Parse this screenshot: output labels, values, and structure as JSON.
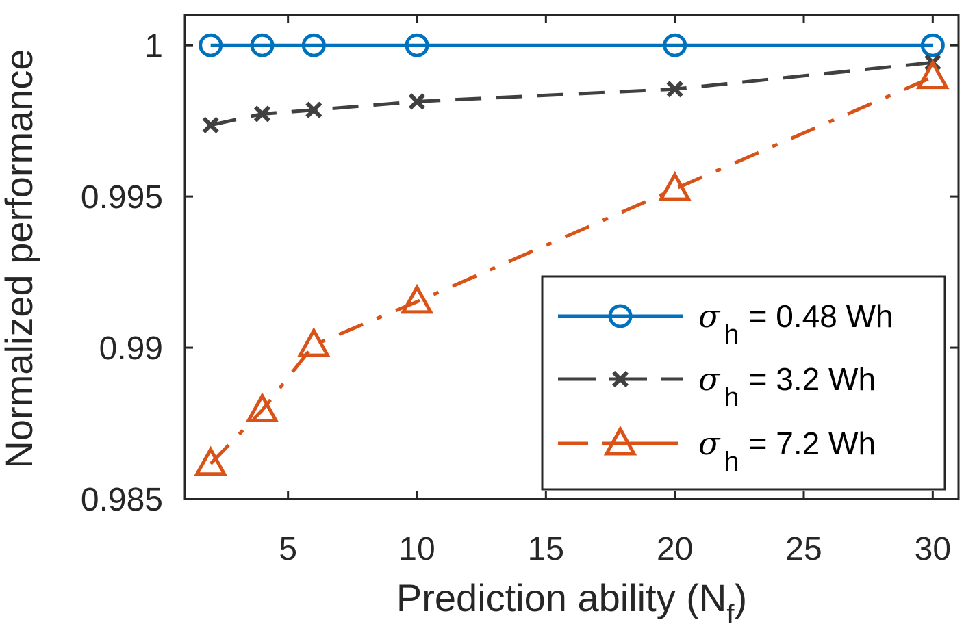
{
  "chart_data": {
    "type": "line",
    "title": "",
    "xlabel": "Prediction ability (N",
    "xlabel_sub": "f",
    "xlabel_close": ")",
    "ylabel": "Normalized performance",
    "xlim": [
      1,
      31
    ],
    "ylim": [
      0.985,
      1.001
    ],
    "grid": false,
    "legend_position": "bottom-right",
    "xticks": [
      5,
      10,
      15,
      20,
      25,
      30
    ],
    "xtick_labels": [
      "5",
      "10",
      "15",
      "20",
      "25",
      "30"
    ],
    "yticks": [
      0.985,
      0.99,
      0.995,
      1
    ],
    "ytick_labels": [
      "0.985",
      "0.99",
      "0.995",
      "1"
    ],
    "x": [
      2,
      4,
      6,
      10,
      20,
      30
    ],
    "series": [
      {
        "name": "σh = 0.48 Wh",
        "legend_symbol": "σ",
        "legend_sub": "h",
        "legend_rest": "= 0.48 Wh",
        "color": "#0072BD",
        "line_style": "solid",
        "marker": "circle",
        "values": [
          1.0,
          1.0,
          1.0,
          1.0,
          1.0,
          1.0
        ]
      },
      {
        "name": "σh = 3.2 Wh",
        "legend_symbol": "σ",
        "legend_sub": "h",
        "legend_rest": "= 3.2 Wh",
        "color": "#404040",
        "line_style": "dashed",
        "marker": "x",
        "values": [
          0.99736,
          0.99773,
          0.99786,
          0.99814,
          0.99855,
          0.99943
        ]
      },
      {
        "name": "σh = 7.2 Wh",
        "legend_symbol": "σ",
        "legend_sub": "h",
        "legend_rest": "= 7.2 Wh",
        "color": "#D95319",
        "line_style": "dashdot",
        "marker": "triangle",
        "values": [
          0.98616,
          0.98793,
          0.99009,
          0.99152,
          0.99525,
          0.99895
        ]
      }
    ]
  }
}
